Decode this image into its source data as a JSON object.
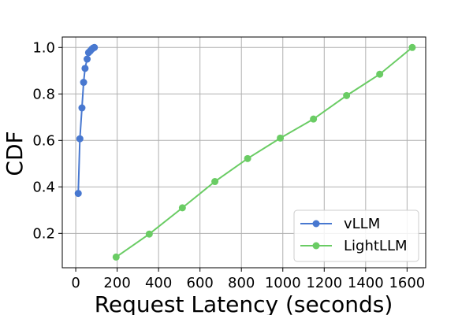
{
  "chart_data": {
    "type": "line",
    "title": "",
    "xlabel": "Request Latency (seconds)",
    "ylabel": "CDF",
    "xlim": [
      -65,
      1690
    ],
    "ylim": [
      0.052,
      1.045
    ],
    "xticks": [
      0,
      200,
      400,
      600,
      800,
      1000,
      1200,
      1400,
      1600
    ],
    "yticks": [
      0.2,
      0.4,
      0.6,
      0.8,
      1.0
    ],
    "xtick_labels": [
      "0",
      "200",
      "400",
      "600",
      "800",
      "1000",
      "1200",
      "1400",
      "1600"
    ],
    "ytick_labels": [
      "0.2",
      "0.4",
      "0.6",
      "0.8",
      "1.0"
    ],
    "grid": true,
    "legend_position": "lower-right",
    "series": [
      {
        "name": "vLLM",
        "color": "#4878d0",
        "x": [
          12,
          20,
          30,
          38,
          45,
          55,
          62,
          70,
          78,
          85,
          90
        ],
        "y": [
          0.372,
          0.607,
          0.74,
          0.85,
          0.91,
          0.95,
          0.978,
          0.985,
          0.993,
          0.998,
          1.0
        ]
      },
      {
        "name": "LightLLM",
        "color": "#6acc64",
        "x": [
          195,
          355,
          515,
          672,
          830,
          988,
          1148,
          1308,
          1468,
          1625
        ],
        "y": [
          0.098,
          0.197,
          0.31,
          0.423,
          0.522,
          0.61,
          0.692,
          0.793,
          0.885,
          1.0
        ]
      }
    ]
  }
}
